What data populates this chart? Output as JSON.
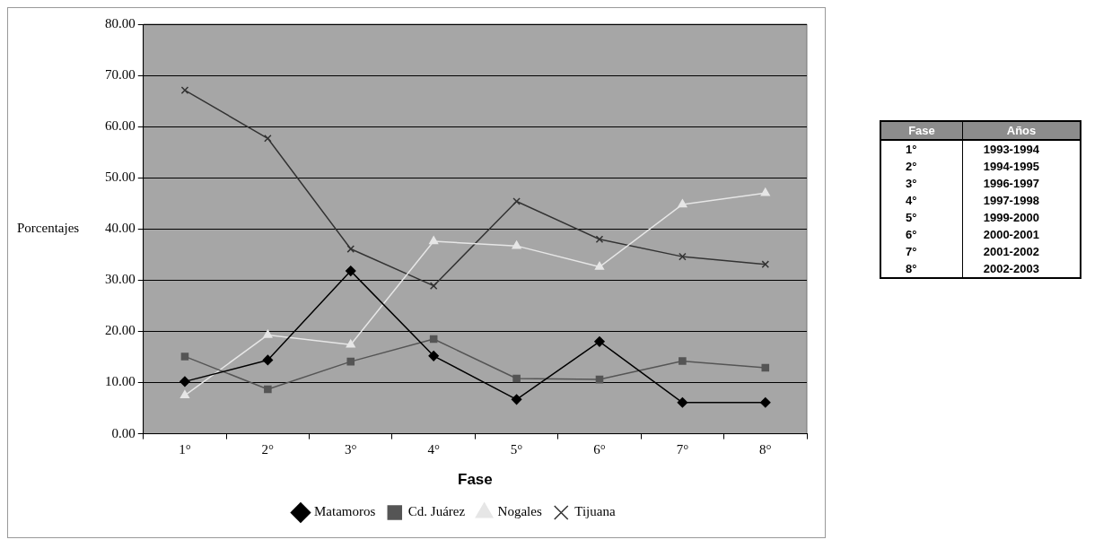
{
  "chart_data": [
    {
      "type": "line",
      "xlabel": "Fase",
      "ylabel": "Porcentajes",
      "categories": [
        "1°",
        "2°",
        "3°",
        "4°",
        "5°",
        "6°",
        "7°",
        "8°"
      ],
      "series": [
        {
          "name": "Matamoros",
          "color": "#000000",
          "marker": "diamond",
          "values": [
            10.2,
            14.4,
            31.8,
            15.2,
            6.7,
            18.0,
            6.1,
            6.1
          ]
        },
        {
          "name": "Cd. Juárez",
          "color": "#555555",
          "marker": "square",
          "values": [
            15.1,
            8.7,
            14.1,
            18.5,
            10.8,
            10.6,
            14.2,
            12.9
          ]
        },
        {
          "name": "Nogales",
          "color": "#e6e6e6",
          "marker": "triangle",
          "values": [
            7.5,
            19.3,
            17.4,
            37.6,
            36.7,
            32.6,
            44.8,
            47.0
          ]
        },
        {
          "name": "Tijuana",
          "color": "#333333",
          "marker": "cross",
          "values": [
            67.1,
            57.7,
            36.1,
            28.9,
            45.4,
            38.0,
            34.6,
            33.1
          ]
        }
      ],
      "ylim": [
        0,
        80
      ],
      "yticks": [
        {
          "value": 0,
          "label": "0.00"
        },
        {
          "value": 10,
          "label": "10.00"
        },
        {
          "value": 20,
          "label": "20.00"
        },
        {
          "value": 30,
          "label": "30.00"
        },
        {
          "value": 40,
          "label": "40.00"
        },
        {
          "value": 50,
          "label": "50.00"
        },
        {
          "value": 60,
          "label": "60.00"
        },
        {
          "value": 70,
          "label": "70.00"
        },
        {
          "value": 80,
          "label": "80.00"
        }
      ],
      "grid": "y",
      "legend": "bottom",
      "line_style": "solid"
    },
    {
      "type": "other",
      "annotations": [
        "Fase",
        "Años",
        "1°",
        "1993-1994",
        "2°",
        "1994-1995",
        "3°",
        "1996-1997",
        "4°",
        "1997-1998",
        "5°",
        "1999-2000",
        "6°",
        "2000-2001",
        "7°",
        "2001-2002",
        "8°",
        "2002-2003"
      ]
    }
  ]
}
